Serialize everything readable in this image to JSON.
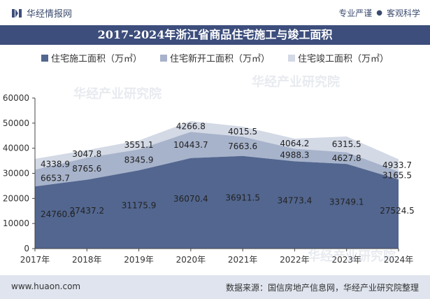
{
  "header": {
    "brand_name": "华经情报网",
    "tagline_left": "专业严谨",
    "tagline_right": "客观科学"
  },
  "title": "2017-2024年浙江省商品住宅施工与竣工面积",
  "footer": {
    "url": "www.huaon.com",
    "source": "数据来源：国信房地产信息网，华经产业研究院整理"
  },
  "watermark": "华经产业研究院",
  "colors": {
    "title_bg": "#3d4e7c",
    "series_construction": "#52668f",
    "series_new_start": "#a7b3cb",
    "series_completed": "#d3d9e5",
    "footer_bg": "#dfe4ee"
  },
  "chart_data": {
    "type": "area",
    "stacked": true,
    "categories": [
      "2017年",
      "2018年",
      "2019年",
      "2020年",
      "2021年",
      "2022年",
      "2023年",
      "2024年"
    ],
    "series": [
      {
        "name": "住宅施工面积（万㎡）",
        "values": [
          24760.0,
          27437.2,
          31175.9,
          36070.4,
          36911.5,
          34773.4,
          33749.1,
          27524.5
        ]
      },
      {
        "name": "住宅新开工面积（万㎡）",
        "values": [
          6653.7,
          8765.6,
          8345.9,
          10443.7,
          7663.6,
          4988.3,
          4627.8,
          3165.5
        ]
      },
      {
        "name": "住宅竣工面积（万㎡）",
        "values": [
          4338.9,
          3047.8,
          3551.1,
          4266.8,
          4015.5,
          4064.2,
          6315.5,
          4933.7
        ]
      }
    ],
    "data_labels": [
      [
        "24760.0",
        "27437.2",
        "31175.9",
        "36070.4",
        "36911.5",
        "34773.4",
        "33749.1",
        "27524.5"
      ],
      [
        "6653.7",
        "8765.6",
        "8345.9",
        "10443.7",
        "7663.6",
        "4988.3",
        "4627.8",
        "3165.5"
      ],
      [
        "4338.9",
        "3047.8",
        "3551.1",
        "4266.8",
        "4015.5",
        "4064.2",
        "6315.5",
        "4933.7"
      ]
    ],
    "ylim": [
      0,
      60000
    ],
    "yticks": [
      "0",
      "10000",
      "20000",
      "30000",
      "40000",
      "50000",
      "60000"
    ],
    "grid": false,
    "legend": "top"
  }
}
